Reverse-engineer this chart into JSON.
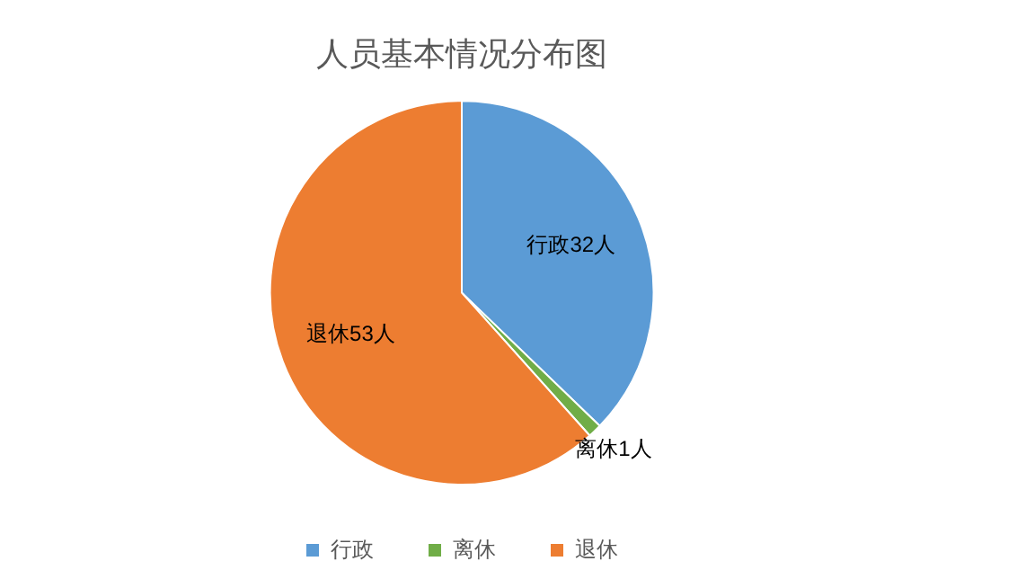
{
  "chart_data": {
    "type": "pie",
    "title": "人员基本情况分布图",
    "categories": [
      "行政",
      "离休",
      "退休"
    ],
    "values": [
      32,
      1,
      53
    ],
    "colors": [
      "#5b9bd5",
      "#70ad47",
      "#ed7d31"
    ],
    "value_labels": [
      "行政32人",
      "离休1人",
      "退休53人"
    ],
    "legend": "bottom"
  }
}
